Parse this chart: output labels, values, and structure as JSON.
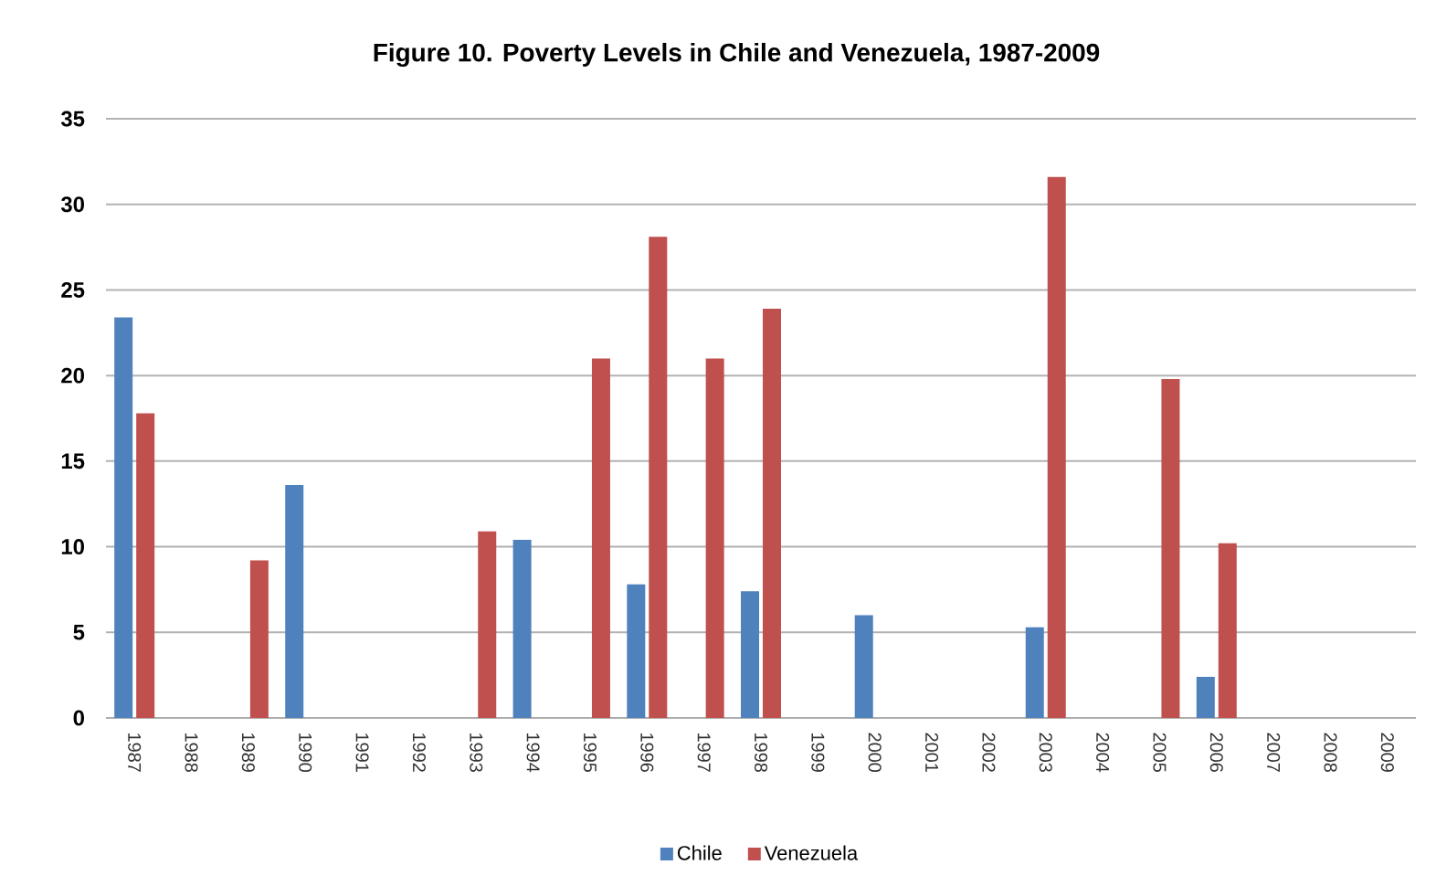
{
  "chart_data": {
    "type": "bar",
    "title": "Figure 10. Poverty Levels in Chile and Venezuela, 1987-2009",
    "categories": [
      "1987",
      "1988",
      "1989",
      "1990",
      "1991",
      "1992",
      "1993",
      "1994",
      "1995",
      "1996",
      "1997",
      "1998",
      "1999",
      "2000",
      "2001",
      "2002",
      "2003",
      "2004",
      "2005",
      "2006",
      "2007",
      "2008",
      "2009"
    ],
    "series": [
      {
        "name": "Chile",
        "color": "#4f81bd",
        "values": [
          23.4,
          null,
          null,
          13.6,
          null,
          null,
          null,
          10.4,
          null,
          7.8,
          null,
          7.4,
          null,
          6.0,
          null,
          null,
          5.3,
          null,
          null,
          2.4,
          null,
          null,
          null
        ]
      },
      {
        "name": "Venezuela",
        "color": "#c0504d",
        "values": [
          17.8,
          null,
          9.2,
          null,
          null,
          null,
          10.9,
          null,
          21.0,
          28.1,
          21.0,
          23.9,
          null,
          null,
          null,
          null,
          31.6,
          null,
          19.8,
          10.2,
          null,
          null,
          null
        ]
      }
    ],
    "ylim": [
      0,
      35
    ],
    "yticks": [
      0,
      5,
      10,
      15,
      20,
      25,
      30,
      35
    ],
    "grid": "y",
    "legend": "bottom"
  }
}
